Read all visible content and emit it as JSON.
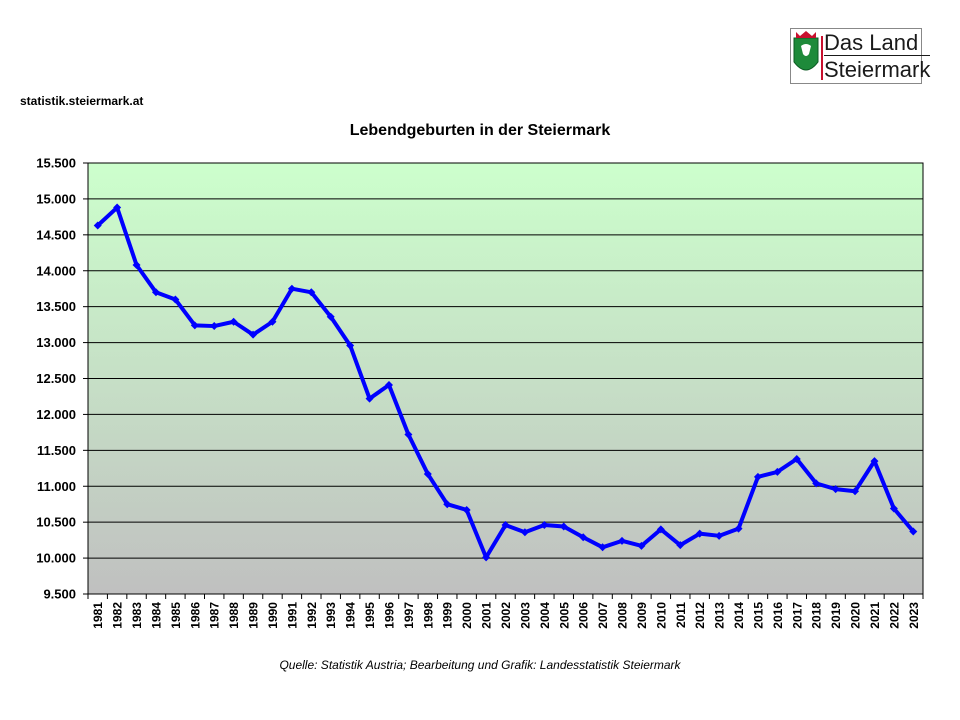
{
  "header": {
    "source_url": "statistik.steiermark.at",
    "logo_line1": "Das Land",
    "logo_line2": "Steiermark"
  },
  "footer": {
    "credit": "Quelle:  Statistik Austria; Bearbeitung und Grafik: Landesstatistik Steiermark"
  },
  "colors": {
    "line": "#0000ff",
    "plot_top": "#ccffcc",
    "plot_bottom": "#c0c0c0",
    "grid": "#000000"
  },
  "chart_data": {
    "type": "line",
    "title": "Lebendgeburten in der Steiermark",
    "xlabel": "",
    "ylabel": "",
    "grid": true,
    "legend": "none",
    "ylim": [
      9500,
      15500
    ],
    "yticks": [
      9500,
      10000,
      10500,
      11000,
      11500,
      12000,
      12500,
      13000,
      13500,
      14000,
      14500,
      15000,
      15500
    ],
    "ytick_labels": [
      "9.500",
      "10.000",
      "10.500",
      "11.000",
      "11.500",
      "12.000",
      "12.500",
      "13.000",
      "13.500",
      "14.000",
      "14.500",
      "15.000",
      "15.500"
    ],
    "categories": [
      "1981",
      "1982",
      "1983",
      "1984",
      "1985",
      "1986",
      "1987",
      "1988",
      "1989",
      "1990",
      "1991",
      "1992",
      "1993",
      "1994",
      "1995",
      "1996",
      "1997",
      "1998",
      "1999",
      "2000",
      "2001",
      "2002",
      "2003",
      "2004",
      "2005",
      "2006",
      "2007",
      "2008",
      "2009",
      "2010",
      "2011",
      "2012",
      "2013",
      "2014",
      "2015",
      "2016",
      "2017",
      "2018",
      "2019",
      "2020",
      "2021",
      "2022",
      "2023"
    ],
    "series": [
      {
        "values": [
          14630,
          14880,
          14080,
          13700,
          13600,
          13240,
          13230,
          13290,
          13110,
          13290,
          13750,
          13700,
          13360,
          12960,
          12220,
          12410,
          11720,
          11170,
          10750,
          10670,
          10010,
          10460,
          10360,
          10460,
          10440,
          10290,
          10150,
          10240,
          10170,
          10400,
          10180,
          10340,
          10310,
          10410,
          11130,
          11200,
          11380,
          11040,
          10960,
          10930,
          11350,
          10690,
          10370
        ]
      }
    ]
  }
}
